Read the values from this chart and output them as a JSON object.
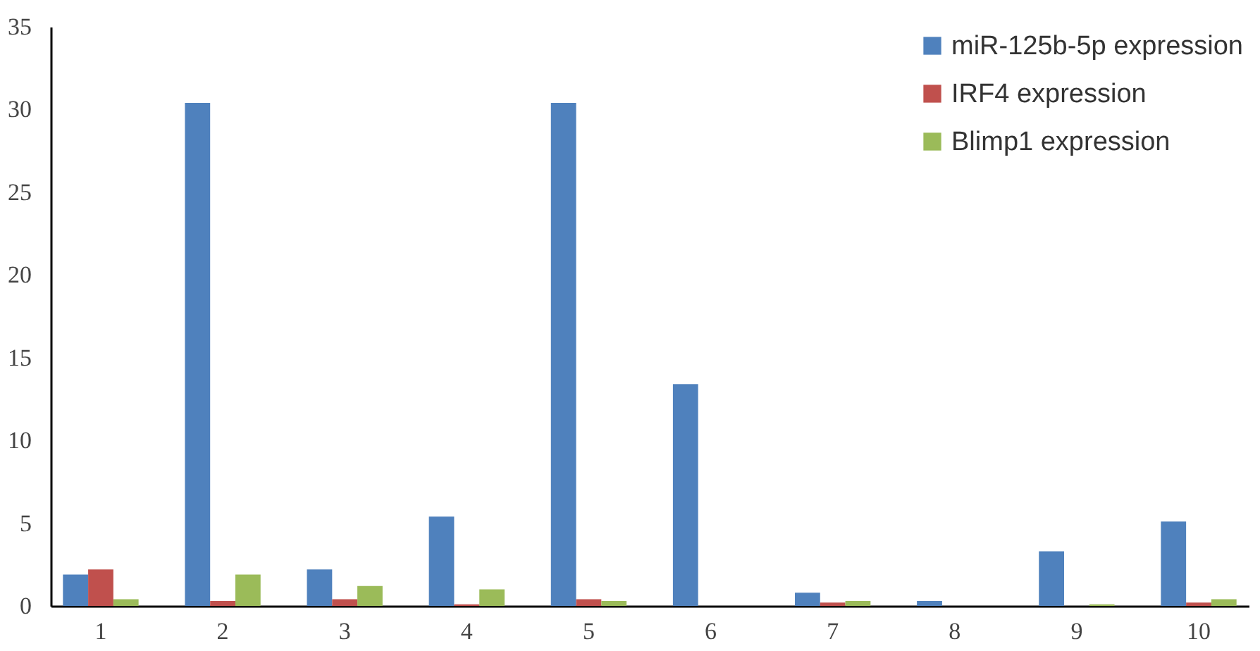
{
  "chart_data": {
    "type": "bar",
    "categories": [
      "1",
      "2",
      "3",
      "4",
      "5",
      "6",
      "7",
      "8",
      "9",
      "10"
    ],
    "series": [
      {
        "name": "miR-125b-5p expression",
        "color": "#4f81bd",
        "values": [
          1.9,
          30.4,
          2.2,
          5.4,
          30.4,
          13.4,
          0.8,
          0.3,
          3.3,
          5.1
        ]
      },
      {
        "name": "IRF4 expression",
        "color": "#c0504d",
        "values": [
          2.2,
          0.3,
          0.4,
          0.1,
          0.4,
          0,
          0.2,
          0,
          0,
          0.2
        ]
      },
      {
        "name": "Blimp1 expression",
        "color": "#9bbb59",
        "values": [
          0.4,
          1.9,
          1.2,
          1.0,
          0.3,
          0,
          0.3,
          0,
          0.1,
          0.4
        ]
      }
    ],
    "ylim": [
      0,
      35
    ],
    "yticks": [
      0,
      5,
      10,
      15,
      20,
      25,
      30,
      35
    ],
    "legend": "top right",
    "grid": false
  }
}
